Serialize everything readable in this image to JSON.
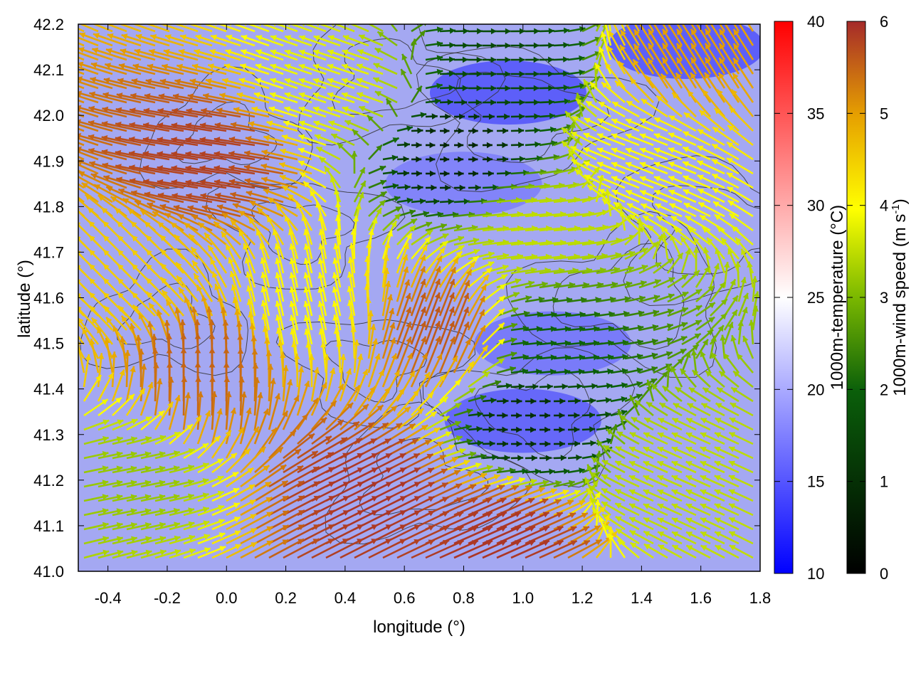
{
  "chart_data": {
    "type": "vector-field",
    "title": "",
    "xlabel": "longitude (°)",
    "ylabel": "latitude (°)",
    "xlim": [
      -0.5,
      1.8
    ],
    "ylim": [
      41.0,
      42.2
    ],
    "x_ticks": [
      -0.4,
      -0.2,
      0.0,
      0.2,
      0.4,
      0.6,
      0.8,
      1.0,
      1.2,
      1.4,
      1.6,
      1.8
    ],
    "y_ticks": [
      41.0,
      41.1,
      41.2,
      41.3,
      41.4,
      41.5,
      41.6,
      41.7,
      41.8,
      41.9,
      42.0,
      42.1,
      42.2
    ],
    "temperature_colorbar": {
      "label": "1000m-temperature (°C)",
      "range": [
        10,
        40
      ],
      "ticks": [
        10,
        15,
        20,
        25,
        30,
        35,
        40
      ],
      "colors": [
        "#0000ff",
        "#ffffff",
        "#ff0000"
      ]
    },
    "wind_colorbar": {
      "label_main": "1000m-wind speed (m s",
      "label_sup": "-1",
      "label_end": ")",
      "range": [
        0,
        6
      ],
      "ticks": [
        0,
        1,
        2,
        3,
        4,
        5,
        6
      ],
      "colors": [
        "#000000",
        "#0a5f0a",
        "#7ab800",
        "#ffff00",
        "#e6a000",
        "#a52a2a"
      ]
    },
    "cold_cores": [
      {
        "lon": 0.95,
        "lat": 42.05,
        "temp": 12
      },
      {
        "lon": 1.55,
        "lat": 42.15,
        "temp": 12
      },
      {
        "lon": 1.0,
        "lat": 41.33,
        "temp": 13
      },
      {
        "lon": 1.1,
        "lat": 41.5,
        "temp": 15
      },
      {
        "lon": 0.8,
        "lat": 41.85,
        "temp": 16
      }
    ],
    "wind_regions": [
      {
        "lon": 0.0,
        "lat": 41.9,
        "u": -1.0,
        "v": 0.15,
        "speed": 5.8
      },
      {
        "lon": -0.3,
        "lat": 41.6,
        "u": -0.7,
        "v": 0.7,
        "speed": 4.5
      },
      {
        "lon": -0.1,
        "lat": 41.4,
        "u": 0.0,
        "v": 1.0,
        "speed": 5.5
      },
      {
        "lon": -0.35,
        "lat": 41.2,
        "u": 1.0,
        "v": 0.2,
        "speed": 3.2
      },
      {
        "lon": 0.4,
        "lat": 41.15,
        "u": 0.9,
        "v": 0.45,
        "speed": 5.9
      },
      {
        "lon": 0.7,
        "lat": 41.5,
        "u": 0.35,
        "v": 0.95,
        "speed": 5.6
      },
      {
        "lon": 0.85,
        "lat": 41.05,
        "u": 0.9,
        "v": 0.4,
        "speed": 5.9
      },
      {
        "lon": 1.0,
        "lat": 41.33,
        "u": 1.0,
        "v": 0.0,
        "speed": 1.0
      },
      {
        "lon": 1.05,
        "lat": 41.5,
        "u": 1.0,
        "v": 0.1,
        "speed": 2.0
      },
      {
        "lon": 1.0,
        "lat": 41.75,
        "u": 1.0,
        "v": 0.1,
        "speed": 3.5
      },
      {
        "lon": 0.75,
        "lat": 41.92,
        "u": 1.0,
        "v": 0.0,
        "speed": 0.8
      },
      {
        "lon": 0.9,
        "lat": 42.1,
        "u": 1.0,
        "v": 0.0,
        "speed": 1.5
      },
      {
        "lon": 1.45,
        "lat": 41.9,
        "u": -0.9,
        "v": 0.35,
        "speed": 4.0
      },
      {
        "lon": 1.55,
        "lat": 41.2,
        "u": -0.9,
        "v": 0.4,
        "speed": 3.5
      },
      {
        "lon": 1.6,
        "lat": 42.1,
        "u": -0.5,
        "v": 0.8,
        "speed": 5.0
      },
      {
        "lon": 0.3,
        "lat": 41.55,
        "u": -0.2,
        "v": 0.9,
        "speed": 4.0
      },
      {
        "lon": 0.4,
        "lat": 42.05,
        "u": -0.9,
        "v": 0.3,
        "speed": 3.8
      }
    ]
  }
}
